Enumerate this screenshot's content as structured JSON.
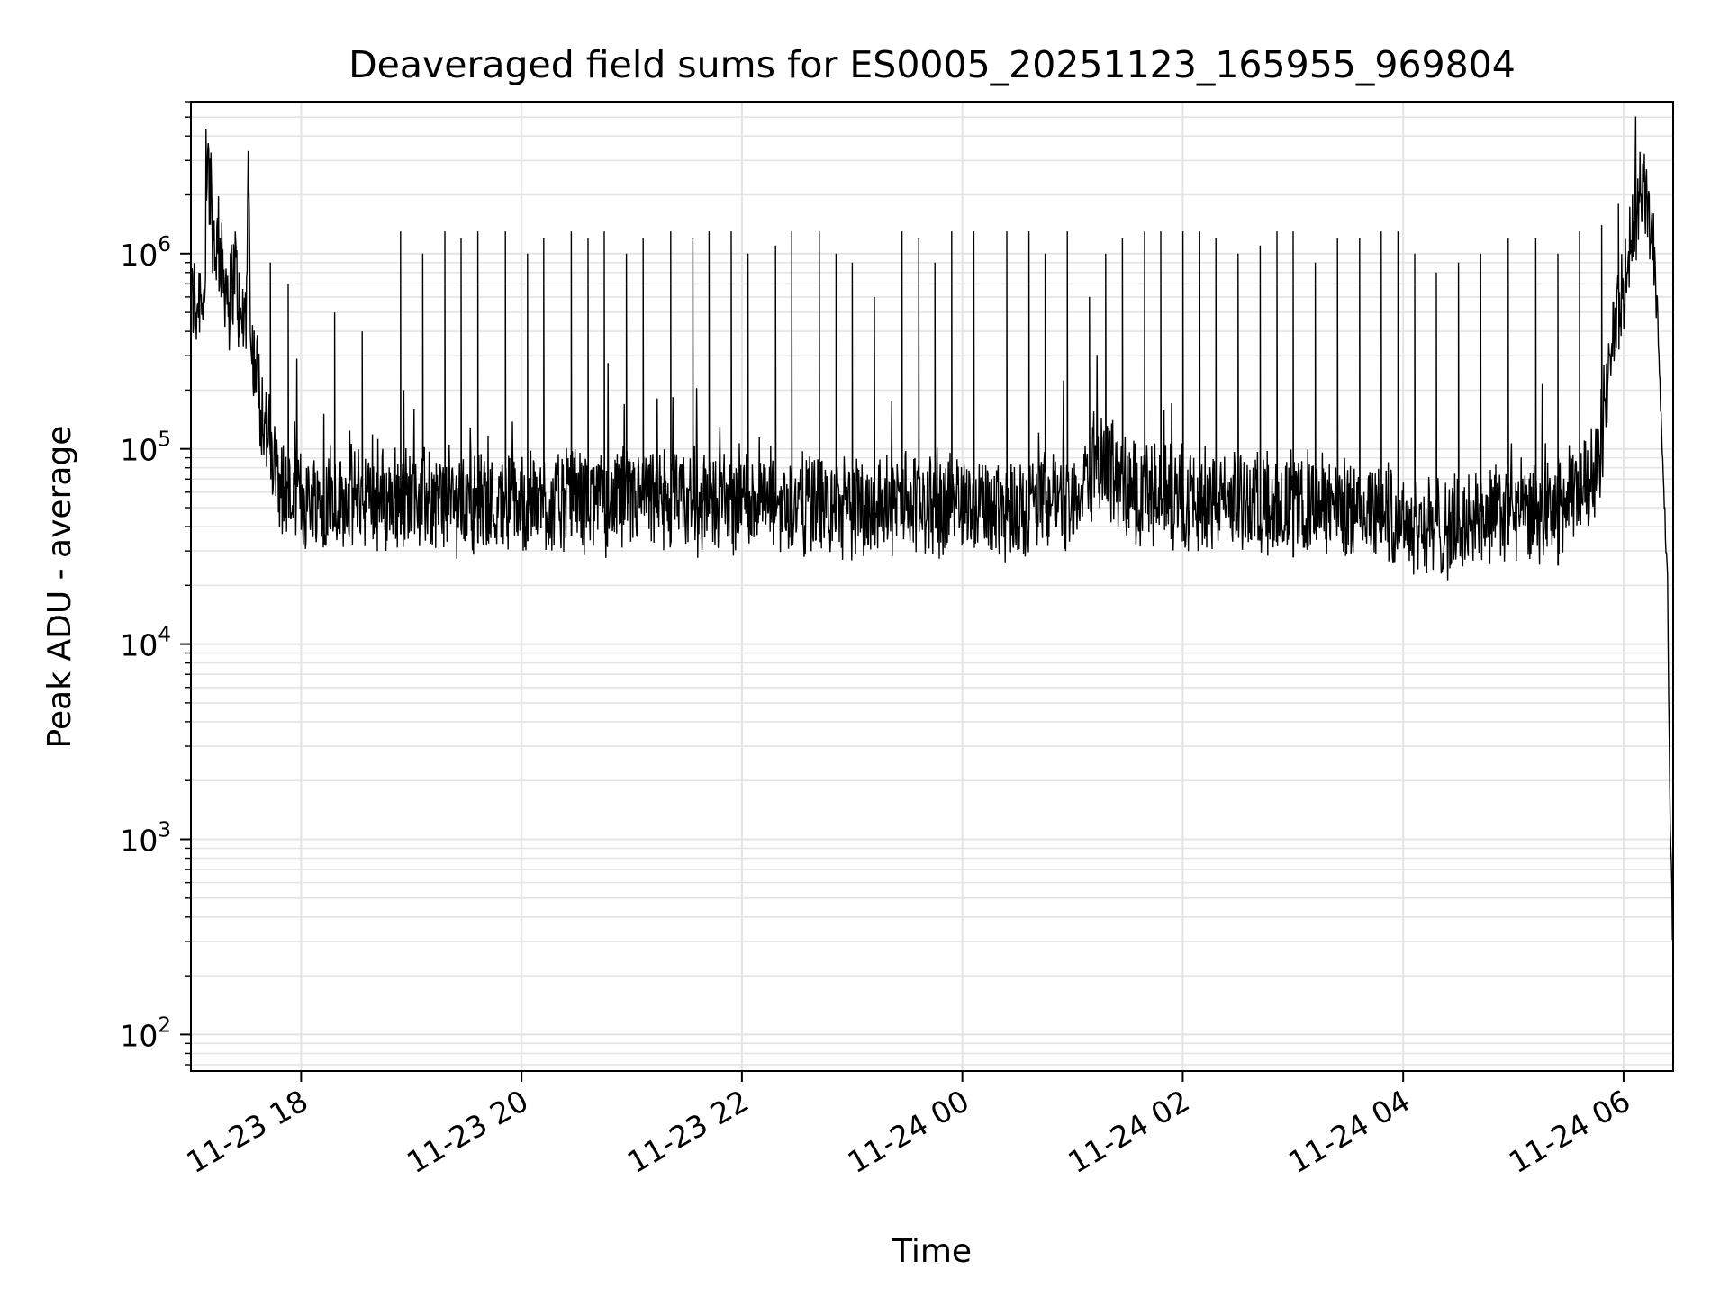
{
  "chart_data": {
    "type": "line",
    "title": "Deaveraged field sums for ES0005_20251123_165955_969804",
    "xlabel": "Time",
    "ylabel": "Peak ADU - average",
    "yscale": "log",
    "xlim_hours": [
      17.0,
      30.45
    ],
    "ylim": [
      65,
      6000000
    ],
    "grid": true,
    "line_color": "#000000",
    "grid_color": "#e4e4e4",
    "x_ticks": [
      {
        "hour": 18,
        "label": "11-23 18"
      },
      {
        "hour": 20,
        "label": "11-23 20"
      },
      {
        "hour": 22,
        "label": "11-23 22"
      },
      {
        "hour": 24,
        "label": "11-24 00"
      },
      {
        "hour": 26,
        "label": "11-24 02"
      },
      {
        "hour": 28,
        "label": "11-24 04"
      },
      {
        "hour": 30,
        "label": "11-24 06"
      }
    ],
    "y_ticks": [
      {
        "value": 100,
        "base": "10",
        "exp": "2"
      },
      {
        "value": 1000,
        "base": "10",
        "exp": "3"
      },
      {
        "value": 10000,
        "base": "10",
        "exp": "4"
      },
      {
        "value": 100000,
        "base": "10",
        "exp": "5"
      },
      {
        "value": 1000000,
        "base": "10",
        "exp": "6"
      }
    ],
    "series": [
      {
        "name": "Peak ADU - average",
        "note": "approximate reconstruction of dense time series; x in hours since 11-23 00:00",
        "x": [
          17.0,
          17.05,
          17.1,
          17.12,
          17.15,
          17.2,
          17.25,
          17.3,
          17.35,
          17.4,
          17.45,
          17.5,
          17.52,
          17.55,
          17.6,
          17.65,
          17.7,
          17.75,
          17.8,
          17.85,
          17.9,
          17.95,
          18.0,
          18.2,
          18.5,
          18.8,
          19.0,
          19.5,
          20.0,
          20.5,
          21.0,
          21.5,
          22.0,
          22.5,
          23.0,
          23.5,
          24.0,
          24.5,
          25.0,
          25.3,
          25.5,
          26.0,
          26.5,
          27.0,
          27.5,
          28.0,
          28.3,
          28.5,
          28.8,
          29.0,
          29.3,
          29.6,
          29.7,
          29.8,
          29.9,
          30.0,
          30.1,
          30.2,
          30.25,
          30.3,
          30.35,
          30.4,
          30.42,
          30.44,
          30.45
        ],
        "y": [
          600000,
          550000,
          700000,
          500000,
          3500000,
          1200000,
          1000000,
          800000,
          600000,
          900000,
          400000,
          500000,
          2600000,
          300000,
          250000,
          150000,
          110000,
          80000,
          70000,
          60000,
          58000,
          55000,
          56000,
          55000,
          57000,
          54000,
          58000,
          53000,
          52000,
          55000,
          54000,
          53000,
          56000,
          52000,
          50000,
          53000,
          52000,
          51000,
          56000,
          90000,
          60000,
          55000,
          54000,
          52000,
          50000,
          45000,
          38000,
          40000,
          45000,
          48000,
          45000,
          60000,
          70000,
          110000,
          400000,
          600000,
          1500000,
          2000000,
          1200000,
          700000,
          100000,
          20000,
          1500,
          500,
          120
        ],
        "spike_times": [
          17.72,
          17.88,
          18.3,
          18.55,
          18.9,
          19.1,
          19.3,
          19.45,
          19.6,
          19.85,
          20.05,
          20.2,
          20.45,
          20.6,
          20.75,
          20.95,
          21.1,
          21.35,
          21.55,
          21.7,
          21.9,
          22.05,
          22.3,
          22.45,
          22.7,
          22.85,
          23.0,
          23.2,
          23.45,
          23.6,
          23.75,
          23.9,
          24.1,
          24.4,
          24.6,
          24.75,
          24.95,
          25.15,
          25.3,
          25.45,
          25.65,
          25.8,
          26.0,
          26.15,
          26.3,
          26.5,
          26.7,
          26.85,
          27.0,
          27.2,
          27.4,
          27.6,
          27.8,
          27.95,
          28.1,
          28.3,
          28.5,
          28.7,
          28.95,
          29.2,
          29.4,
          29.6,
          29.8,
          29.95
        ],
        "spike_values": [
          900000,
          700000,
          500000,
          400000,
          1300000,
          1000000,
          1300000,
          1200000,
          1300000,
          1300000,
          1000000,
          1200000,
          1300000,
          1200000,
          1300000,
          1000000,
          1200000,
          1300000,
          1200000,
          1300000,
          1300000,
          1000000,
          1100000,
          1300000,
          1300000,
          1000000,
          900000,
          600000,
          1300000,
          1200000,
          900000,
          1300000,
          1300000,
          1300000,
          1300000,
          1000000,
          1300000,
          600000,
          1000000,
          1200000,
          1300000,
          1300000,
          1300000,
          1300000,
          1200000,
          1000000,
          1100000,
          1300000,
          1300000,
          900000,
          1200000,
          1200000,
          1300000,
          1300000,
          1000000,
          800000,
          900000,
          1000000,
          1200000,
          1200000,
          1000000,
          1300000,
          1400000,
          1800000
        ]
      }
    ]
  }
}
